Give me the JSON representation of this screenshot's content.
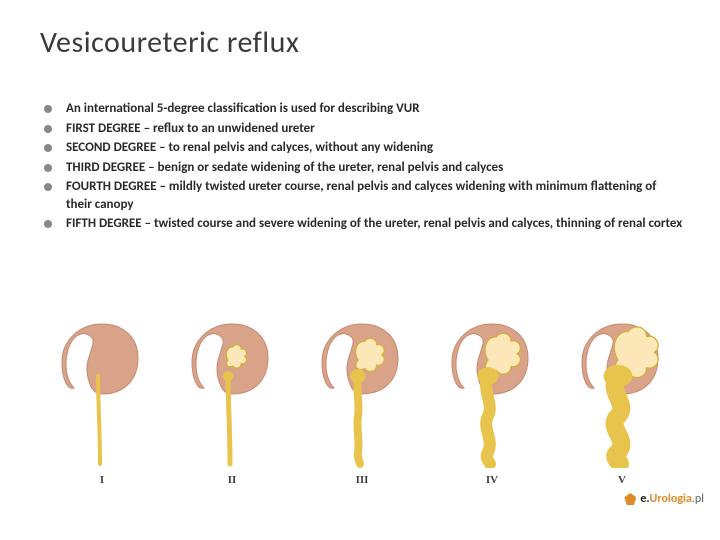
{
  "title": "Vesicoureteric reflux",
  "title_fontsize": 30,
  "title_color": "#3b3b3b",
  "bullet_dot_color": "#888888",
  "bullet_fontsize": 13,
  "bullet_fontweight": 700,
  "bullet_color": "#2a2a2a",
  "bullets": [
    "An international 5-degree classification is used for describing VUR",
    "FIRST DEGREE – reflux to an unwidened ureter",
    "SECOND DEGREE – to renal pelvis and calyces, without any widening",
    "THIRD DEGREE – benign or sedate widening of the ureter, renal pelvis and calyces",
    "FOURTH DEGREE – mildly twisted ureter course, renal pelvis and calyces widening with minimum flattening of their canopy",
    "FIFTH DEGREE – twisted course and severe widening of the ureter, renal pelvis and calyces, thinning of renal cortex"
  ],
  "diagrams": {
    "count": 5,
    "labels": [
      "I",
      "II",
      "III",
      "IV",
      "V"
    ],
    "kidney_fill": "#d9a38a",
    "kidney_stroke": "#c68a70",
    "calyces_fill": "#fbe7b8",
    "ureter_fill": "#e9c44d",
    "ureter_stroke": "#d4ae30",
    "background": "#ffffff",
    "item_width": 100,
    "item_height": 148,
    "styles": [
      {
        "ureter_width": 4,
        "calyx_scale": 0.0,
        "tortuosity": 0,
        "pelvis_scale": 0.0
      },
      {
        "ureter_width": 5,
        "calyx_scale": 0.6,
        "tortuosity": 0,
        "pelvis_scale": 0.6
      },
      {
        "ureter_width": 8,
        "calyx_scale": 0.85,
        "tortuosity": 0.15,
        "pelvis_scale": 0.85
      },
      {
        "ureter_width": 12,
        "calyx_scale": 1.05,
        "tortuosity": 0.45,
        "pelvis_scale": 1.1
      },
      {
        "ureter_width": 18,
        "calyx_scale": 1.3,
        "tortuosity": 0.85,
        "pelvis_scale": 1.4
      }
    ]
  },
  "watermark": {
    "prefix": "e.",
    "mid": "Urologia",
    "suffix": ".pl"
  }
}
